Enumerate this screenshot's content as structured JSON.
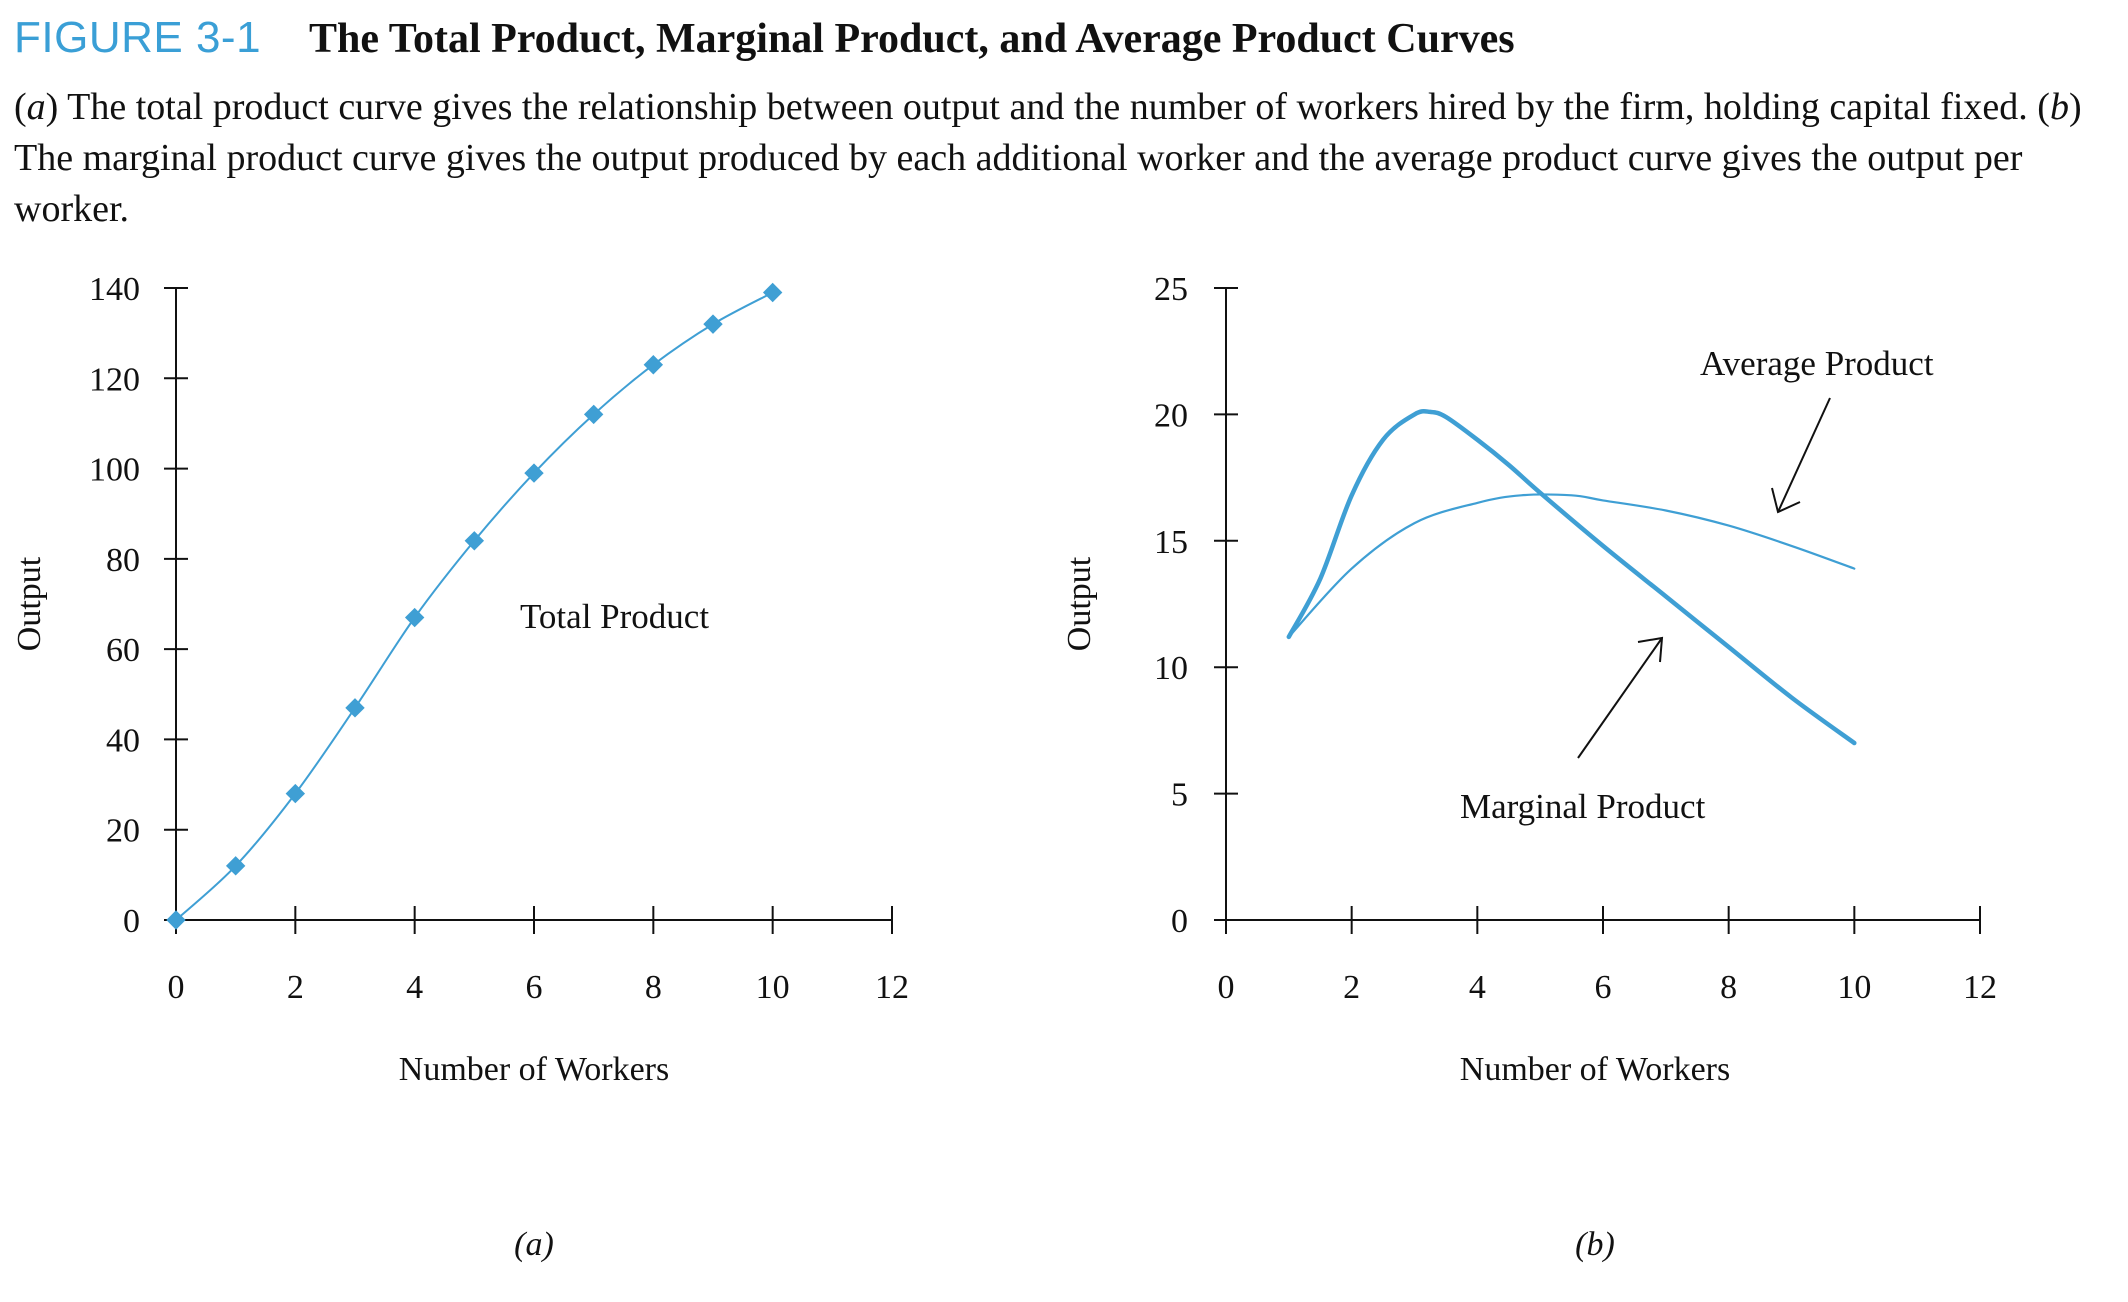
{
  "figure": {
    "label": "FIGURE 3-1",
    "title": "The Total Product, Marginal Product, and Average Product Curves",
    "caption_parts": [
      "(",
      "a",
      ") The total product curve gives the relationship between output and the number of workers hired by the firm, holding capital fixed. (",
      "b",
      ") The marginal product curve gives the output produced by each additional worker and the average product curve gives the output per worker."
    ]
  },
  "colors": {
    "accent": "#3a9fd6",
    "series": "#3f9fd4",
    "axis": "#111111"
  },
  "chart_data": [
    {
      "type": "line",
      "panel_label": "(a)",
      "xlabel": "Number of Workers",
      "ylabel": "Output",
      "xlim": [
        0,
        12
      ],
      "ylim": [
        0,
        140
      ],
      "xticks": [
        0,
        2,
        4,
        6,
        8,
        10,
        12
      ],
      "yticks": [
        0,
        20,
        40,
        60,
        80,
        100,
        120,
        140
      ],
      "markers": "diamond",
      "series": [
        {
          "name": "Total Product",
          "x": [
            0,
            1,
            2,
            3,
            4,
            5,
            6,
            7,
            8,
            9,
            10
          ],
          "y": [
            0,
            12,
            28,
            47,
            67,
            84,
            99,
            112,
            123,
            132,
            139
          ]
        }
      ],
      "annotations": [
        {
          "text": "Total Product"
        }
      ]
    },
    {
      "type": "line",
      "panel_label": "(b)",
      "xlabel": "Number of Workers",
      "ylabel": "Output",
      "xlim": [
        0,
        12
      ],
      "ylim": [
        0,
        25
      ],
      "xticks": [
        0,
        2,
        4,
        6,
        8,
        10,
        12
      ],
      "yticks": [
        0,
        5,
        10,
        15,
        20,
        25
      ],
      "series": [
        {
          "name": "Marginal Product",
          "x": [
            1,
            1.5,
            2,
            2.5,
            3,
            3.25,
            3.5,
            4,
            4.5,
            5,
            6,
            7,
            8,
            9,
            10
          ],
          "y": [
            11.2,
            13.5,
            16.8,
            19.0,
            20.0,
            20.1,
            19.9,
            19.0,
            18.0,
            16.9,
            14.8,
            12.8,
            10.8,
            8.8,
            7.0
          ]
        },
        {
          "name": "Average Product",
          "x": [
            1,
            2,
            3,
            4,
            4.7,
            5.5,
            6,
            7,
            8,
            9,
            10
          ],
          "y": [
            11.2,
            13.9,
            15.7,
            16.5,
            16.8,
            16.8,
            16.6,
            16.2,
            15.6,
            14.8,
            13.9
          ]
        }
      ],
      "annotations": [
        {
          "text": "Average Product"
        },
        {
          "text": "Marginal Product"
        }
      ]
    }
  ]
}
